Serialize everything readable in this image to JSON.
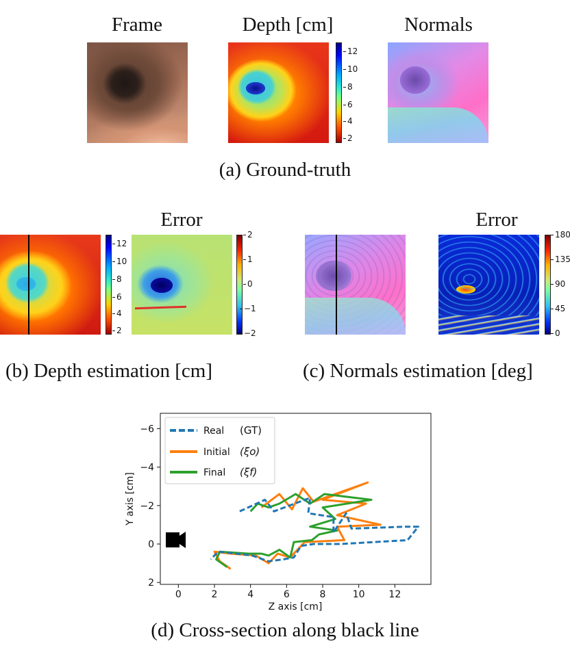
{
  "row_a": {
    "titles": [
      "Frame",
      "Depth [cm]",
      "Normals"
    ],
    "depth_ticks": [
      "12",
      "10",
      "8",
      "6",
      "4",
      "2"
    ],
    "caption": "(a) Ground-truth"
  },
  "row_b": {
    "error_title": "Error",
    "depth_ticks": [
      "12",
      "10",
      "8",
      "6",
      "4",
      "2"
    ],
    "error_ticks": [
      "2",
      "1",
      "0",
      "−1",
      "−2"
    ],
    "caption": "(b) Depth estimation [cm]"
  },
  "row_c": {
    "error_title": "Error",
    "error_ticks": [
      "180",
      "135",
      "90",
      "45",
      "0"
    ],
    "caption": "(c) Normals estimation [deg]"
  },
  "row_d": {
    "caption": "(d) Cross-section along black line"
  },
  "chart_data": {
    "type": "line",
    "xlabel": "Z axis [cm]",
    "ylabel": "Y axis [cm]",
    "xlim": [
      -1,
      14
    ],
    "ylim": [
      2.1,
      -6.8
    ],
    "y_inverted": true,
    "xticks": [
      "0",
      "2",
      "4",
      "6",
      "8",
      "10",
      "12"
    ],
    "yticks": [
      "−6",
      "−4",
      "−2",
      "0",
      "2"
    ],
    "legend_position": "top-left",
    "series": [
      {
        "name": "Real",
        "tag": "(GT)",
        "color": "#1f77b4",
        "style": "dashed",
        "points": [
          [
            3.4,
            -1.7
          ],
          [
            4.8,
            -2.3
          ],
          [
            5.3,
            -1.7
          ],
          [
            7.3,
            -2.4
          ],
          [
            7.2,
            -1.6
          ],
          [
            8.6,
            -1.4
          ],
          [
            8.6,
            -0.6
          ],
          [
            9.3,
            -1.6
          ],
          [
            9.6,
            -0.8
          ],
          [
            12.6,
            -0.9
          ],
          [
            13.3,
            -0.9
          ],
          [
            12.7,
            -0.2
          ],
          [
            9.0,
            0.0
          ],
          [
            7.5,
            0.0
          ],
          [
            6.8,
            0.1
          ],
          [
            6.4,
            0.7
          ],
          [
            5.8,
            0.8
          ],
          [
            5.0,
            0.9
          ],
          [
            4.1,
            0.6
          ],
          [
            3.2,
            0.5
          ],
          [
            2.2,
            0.4
          ],
          [
            1.8,
            0.8
          ]
        ]
      },
      {
        "name": "Initial",
        "tag": "(ξo)",
        "color": "#ff7f0e",
        "style": "solid",
        "points": [
          [
            4.6,
            -1.9
          ],
          [
            5.6,
            -2.6
          ],
          [
            6.3,
            -1.8
          ],
          [
            6.9,
            -2.9
          ],
          [
            7.5,
            -2.2
          ],
          [
            10.5,
            -3.2
          ],
          [
            8.0,
            -2.3
          ],
          [
            10.4,
            -2.1
          ],
          [
            8.8,
            -1.5
          ],
          [
            11.2,
            -1.0
          ],
          [
            8.8,
            -0.9
          ],
          [
            9.2,
            -0.2
          ],
          [
            7.0,
            -0.1
          ],
          [
            6.2,
            0.7
          ],
          [
            5.5,
            0.5
          ],
          [
            5.0,
            1.0
          ],
          [
            4.3,
            0.6
          ],
          [
            2.9,
            0.5
          ],
          [
            2.0,
            0.4
          ],
          [
            2.3,
            0.9
          ],
          [
            2.9,
            1.3
          ]
        ]
      },
      {
        "name": "Final",
        "tag": "(ξf)",
        "color": "#2ca02c",
        "style": "solid",
        "points": [
          [
            4.0,
            -1.7
          ],
          [
            4.4,
            -2.1
          ],
          [
            5.0,
            -1.9
          ],
          [
            5.6,
            -2.1
          ],
          [
            6.5,
            -2.6
          ],
          [
            7.3,
            -2.1
          ],
          [
            8.1,
            -2.6
          ],
          [
            10.7,
            -2.3
          ],
          [
            8.0,
            -1.9
          ],
          [
            8.7,
            -1.3
          ],
          [
            7.3,
            -0.9
          ],
          [
            8.8,
            -0.7
          ],
          [
            7.8,
            -0.5
          ],
          [
            7.4,
            -0.2
          ],
          [
            6.4,
            -0.1
          ],
          [
            6.2,
            0.7
          ],
          [
            5.6,
            0.3
          ],
          [
            5.0,
            0.6
          ],
          [
            4.6,
            0.5
          ],
          [
            3.9,
            0.5
          ],
          [
            2.3,
            0.4
          ],
          [
            2.1,
            0.8
          ],
          [
            2.7,
            1.2
          ]
        ]
      }
    ]
  }
}
